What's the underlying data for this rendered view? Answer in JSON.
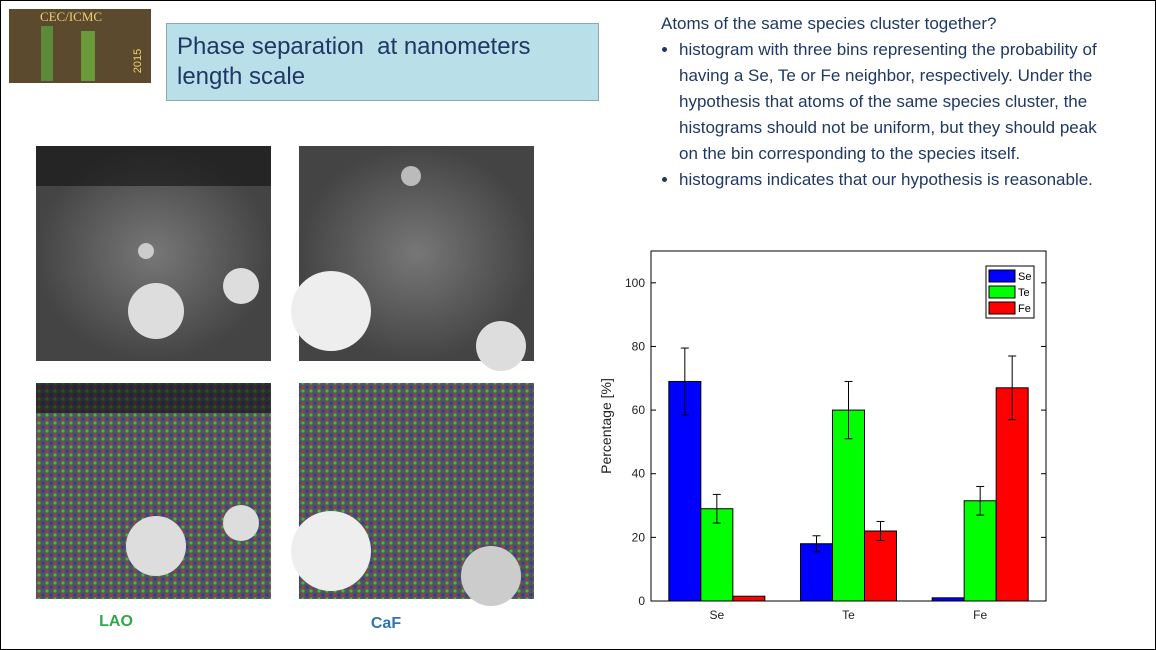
{
  "logo": {
    "title": "CEC/ICMC",
    "year": "2015"
  },
  "header": {
    "title_lines": [
      "Phase separation  at nanometers",
      "length scale"
    ]
  },
  "text": {
    "question": "Atoms of the same species cluster together?",
    "bullets": [
      "histogram with three bins representing the probability of having a Se, Te or Fe neighbor, respectively. Under the hypothesis that atoms of the same species cluster, the histograms should not be uniform, but they should peak on the bin corresponding to the species itself.",
      "histograms indicates that our hypothesis is reasonable."
    ]
  },
  "images": {
    "labels": [
      "LAO",
      "CaF"
    ]
  },
  "chart_data": {
    "type": "bar",
    "ylabel": "Percentage [%]",
    "categories": [
      "Se",
      "Te",
      "Fe"
    ],
    "series": [
      {
        "name": "Se",
        "color": "#0000ff",
        "values": [
          69,
          18,
          1
        ],
        "errors": [
          10.5,
          2.5,
          null
        ]
      },
      {
        "name": "Te",
        "color": "#00ff00",
        "values": [
          29,
          60,
          31.5
        ],
        "errors": [
          4.5,
          9,
          4.5
        ]
      },
      {
        "name": "Fe",
        "color": "#ff0000",
        "values": [
          1.5,
          22,
          67
        ],
        "errors": [
          null,
          3,
          10
        ]
      }
    ],
    "ylim": [
      0,
      110
    ],
    "yticks": [
      0,
      20,
      40,
      60,
      80,
      100
    ],
    "grid": false,
    "legend": "upper right"
  }
}
